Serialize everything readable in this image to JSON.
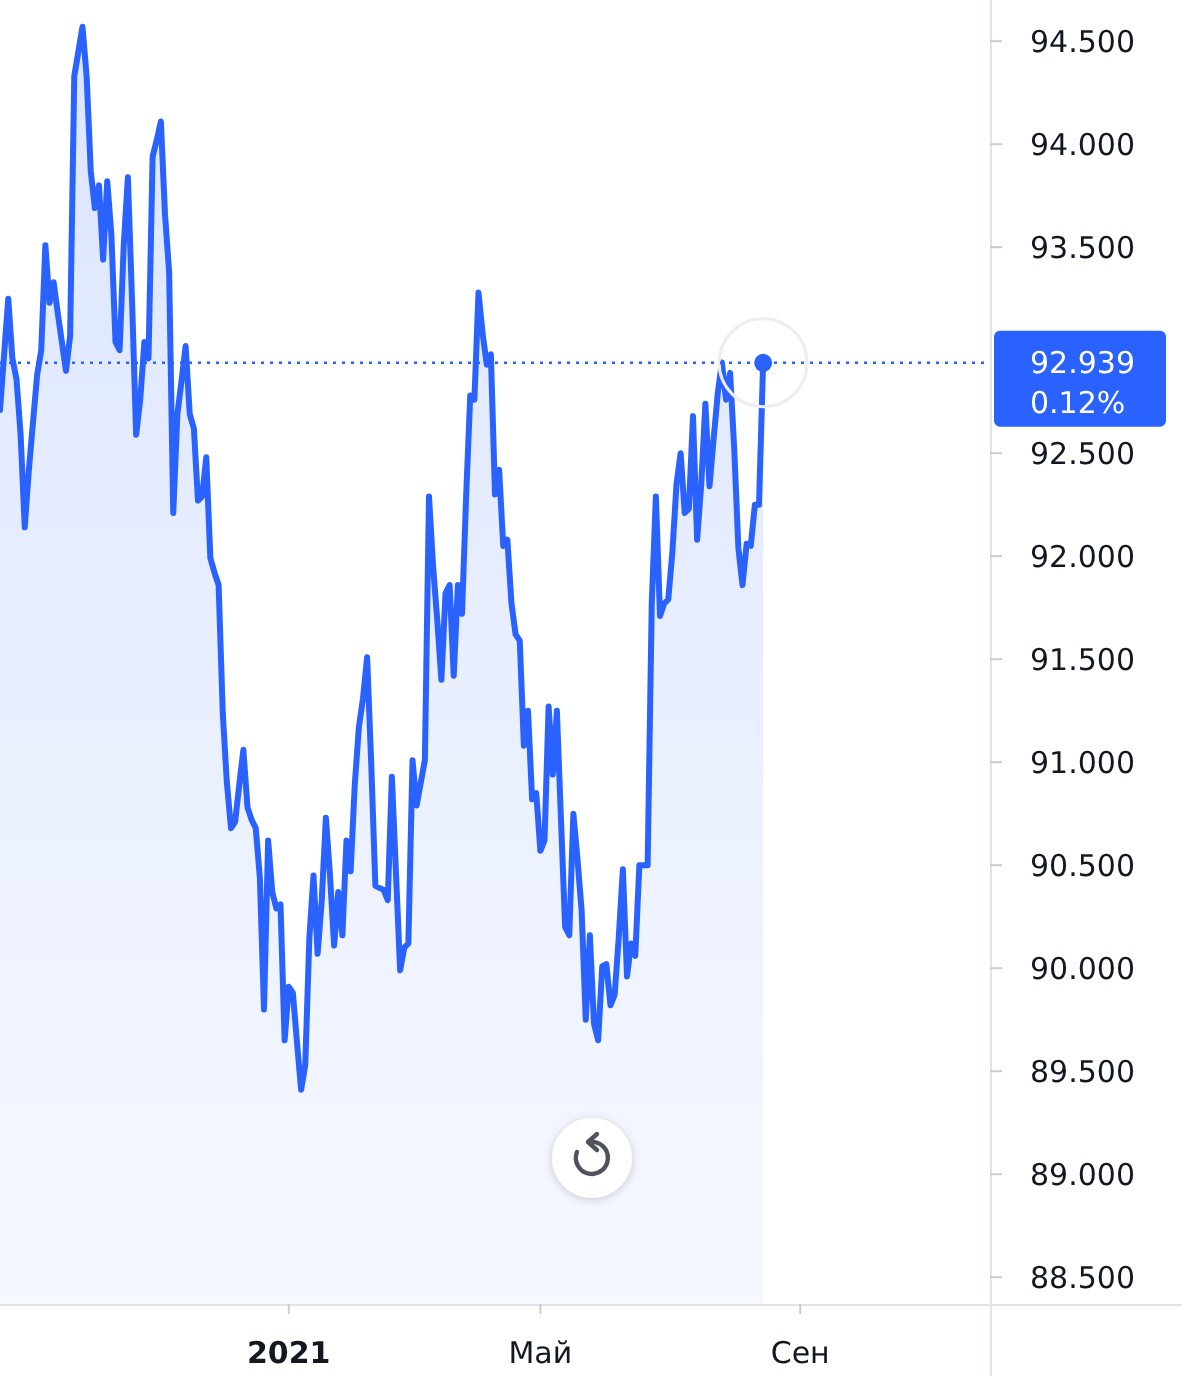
{
  "chart_data": {
    "type": "area",
    "color": "#2962ff",
    "categories": [
      null,
      null,
      null,
      null,
      null,
      null,
      null,
      null,
      null,
      null,
      null,
      null,
      null,
      null,
      null,
      null,
      null,
      null,
      null,
      null,
      null,
      null,
      null,
      null,
      null,
      null,
      null,
      null,
      null,
      null,
      null,
      null,
      null,
      null,
      null,
      null,
      null,
      null,
      null,
      null,
      null,
      null,
      null,
      null,
      null,
      null,
      null,
      null,
      null,
      null,
      null,
      null,
      null,
      null,
      null,
      null,
      null,
      null,
      null,
      null,
      null,
      null,
      null,
      null,
      null,
      null,
      null,
      null,
      null,
      null,
      "2021",
      null,
      null,
      null,
      null,
      null,
      null,
      null,
      null,
      null,
      null,
      null,
      null,
      null,
      null,
      null,
      null,
      null,
      null,
      null,
      null,
      null,
      null,
      null,
      null,
      null,
      null,
      null,
      null,
      null,
      null,
      null,
      null,
      null,
      null,
      null,
      null,
      null,
      null,
      null,
      null,
      null,
      null,
      null,
      null,
      null,
      null,
      null,
      null,
      null,
      null,
      null,
      null,
      null,
      null,
      null,
      null,
      null,
      null,
      null,
      null,
      "Май",
      null,
      null,
      null,
      null,
      null,
      null,
      null,
      null,
      null,
      null,
      null,
      null,
      null,
      null,
      null,
      null,
      null,
      null,
      null,
      null,
      null,
      null,
      null,
      null,
      null,
      null,
      null,
      null,
      null,
      null,
      null,
      null,
      null,
      null,
      null,
      null,
      null,
      null,
      null,
      null,
      null,
      null,
      null,
      null,
      null,
      null,
      null,
      null,
      null,
      null,
      null,
      null,
      null,
      null,
      null,
      null,
      null,
      null,
      null,
      null,
      null,
      null,
      "Сен",
      null,
      null,
      null,
      null,
      null,
      null,
      null,
      null,
      null,
      null,
      null,
      null,
      null,
      null,
      null,
      null,
      null,
      null,
      null,
      null,
      null,
      null,
      null,
      null,
      null,
      null,
      null,
      null,
      null,
      null,
      null,
      null,
      null,
      null,
      null,
      null,
      null,
      null,
      null,
      null,
      null,
      null,
      null,
      null,
      null,
      null
    ],
    "values": [
      92.71,
      92.98,
      93.25,
      92.96,
      92.86,
      92.59,
      92.14,
      92.42,
      92.65,
      92.88,
      93.0,
      93.51,
      93.23,
      93.33,
      93.18,
      93.04,
      92.9,
      93.07,
      94.33,
      94.45,
      94.57,
      94.33,
      93.87,
      93.69,
      93.8,
      93.44,
      93.82,
      93.56,
      93.04,
      93.0,
      93.51,
      93.84,
      93.25,
      92.59,
      92.76,
      93.04,
      92.96,
      93.94,
      94.02,
      94.11,
      93.66,
      93.38,
      92.21,
      92.69,
      92.85,
      93.02,
      92.69,
      92.62,
      92.27,
      92.29,
      92.48,
      91.99,
      91.92,
      91.86,
      91.24,
      90.9,
      90.68,
      90.71,
      90.89,
      91.06,
      90.78,
      90.72,
      90.68,
      90.44,
      89.8,
      90.62,
      90.37,
      90.29,
      90.31,
      89.65,
      89.91,
      89.88,
      89.64,
      89.41,
      89.53,
      90.15,
      90.45,
      90.07,
      90.33,
      90.73,
      90.45,
      90.11,
      90.37,
      90.16,
      90.62,
      90.47,
      90.89,
      91.17,
      91.31,
      91.51,
      90.99,
      90.4,
      90.39,
      90.38,
      90.33,
      90.93,
      90.46,
      89.99,
      90.1,
      90.12,
      91.01,
      90.79,
      90.9,
      91.01,
      92.29,
      91.95,
      91.69,
      91.4,
      91.82,
      91.86,
      91.42,
      91.86,
      91.72,
      92.29,
      92.78,
      92.76,
      93.28,
      93.08,
      92.93,
      92.98,
      92.3,
      92.42,
      92.05,
      92.08,
      91.77,
      91.62,
      91.59,
      91.08,
      91.25,
      90.82,
      90.85,
      90.57,
      90.62,
      91.27,
      90.94,
      91.25,
      90.72,
      90.2,
      90.16,
      90.75,
      90.53,
      90.28,
      89.75,
      90.16,
      89.73,
      89.65,
      90.01,
      90.02,
      89.82,
      89.87,
      90.15,
      90.48,
      89.96,
      90.12,
      90.06,
      90.5,
      90.5,
      90.5,
      91.77,
      92.29,
      91.71,
      91.77,
      91.79,
      92.02,
      92.35,
      92.5,
      92.21,
      92.23,
      92.68,
      92.08,
      92.35,
      92.74,
      92.34,
      92.57,
      92.79,
      92.94,
      92.76,
      92.89,
      92.52,
      92.04,
      91.86,
      92.06,
      92.05,
      92.25,
      92.25,
      92.939,
      null,
      null,
      null,
      null,
      null,
      null,
      null,
      null,
      null,
      null,
      null,
      null,
      null,
      null,
      null,
      null,
      null,
      null,
      null,
      null,
      null,
      null,
      null,
      null,
      null,
      null,
      null,
      null,
      null,
      null,
      null,
      null,
      null,
      null,
      null,
      null,
      null,
      null,
      null,
      null,
      null,
      null,
      null,
      null,
      null,
      null,
      null,
      null,
      null,
      null,
      null,
      null,
      null,
      null,
      null
    ],
    "ylim": [
      88.37,
      94.7
    ],
    "yticks": [
      {
        "value": 88.5,
        "label": "88.500"
      },
      {
        "value": 89,
        "label": "89.000"
      },
      {
        "value": 89.5,
        "label": "89.500"
      },
      {
        "value": 90,
        "label": "90.000"
      },
      {
        "value": 90.5,
        "label": "90.500"
      },
      {
        "value": 91,
        "label": "91.000"
      },
      {
        "value": 91.5,
        "label": "91.500"
      },
      {
        "value": 92,
        "label": "92.000"
      },
      {
        "value": 92.5,
        "label": "92.500"
      },
      {
        "value": 93.5,
        "label": "93.500"
      },
      {
        "value": 94,
        "label": "94.000"
      },
      {
        "value": 94.5,
        "label": "94.500"
      }
    ],
    "ref_lines": [
      {
        "axis": "y",
        "value": 92.939,
        "label": "92.939",
        "color": "#2962ff",
        "line_style": "dotted"
      }
    ],
    "annotations": [
      "0.12%"
    ]
  }
}
